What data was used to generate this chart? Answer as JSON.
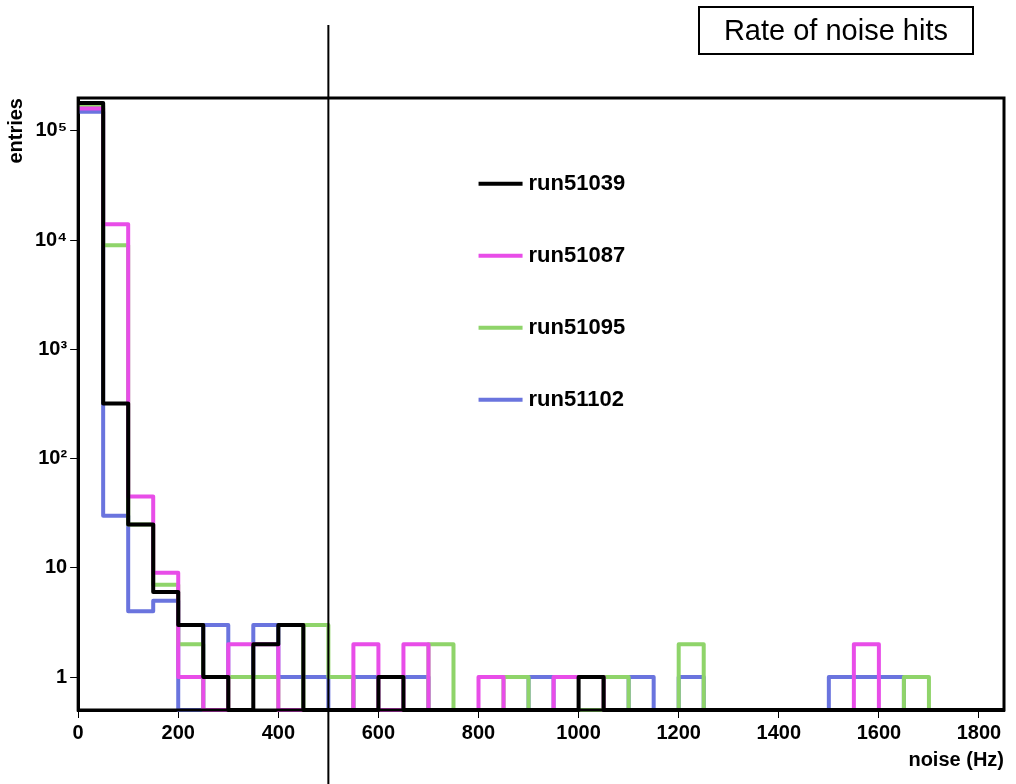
{
  "chart_data": {
    "type": "histogram",
    "title": "Rate of noise hits",
    "xlabel": "noise (Hz)",
    "ylabel": "entries",
    "bins": [
      0,
      50,
      100,
      150,
      200,
      250,
      300,
      350,
      400,
      450,
      500,
      550,
      600,
      650,
      700,
      750,
      800,
      850,
      900,
      950,
      1000,
      1050,
      1100,
      1150,
      1200,
      1250,
      1300,
      1350,
      1400,
      1450,
      1500,
      1550,
      1600,
      1650,
      1700,
      1750,
      1800,
      1850
    ],
    "series": [
      {
        "name": "run51039",
        "color": "#000000",
        "values": [
          180000,
          320,
          25,
          6,
          3,
          1,
          null,
          2,
          3,
          null,
          null,
          null,
          1,
          null,
          null,
          null,
          null,
          null,
          null,
          null,
          1,
          null,
          null,
          null,
          null,
          null,
          null,
          null,
          null,
          null,
          null,
          null,
          null,
          null,
          null,
          null,
          null
        ]
      },
      {
        "name": "run51087",
        "color": "#e84de8",
        "values": [
          160000,
          14000,
          45,
          9,
          1,
          null,
          2,
          2,
          null,
          null,
          null,
          2,
          null,
          2,
          null,
          null,
          1,
          null,
          null,
          1,
          1,
          null,
          null,
          null,
          null,
          null,
          null,
          null,
          null,
          null,
          null,
          2,
          null,
          null,
          null,
          null,
          null
        ]
      },
      {
        "name": "run51095",
        "color": "#8fd46a",
        "values": [
          170000,
          9000,
          25,
          7,
          2,
          null,
          1,
          1,
          null,
          3,
          1,
          null,
          null,
          null,
          2,
          null,
          null,
          1,
          null,
          null,
          null,
          1,
          null,
          null,
          2,
          null,
          null,
          null,
          null,
          null,
          null,
          null,
          null,
          1,
          null,
          null,
          null
        ]
      },
      {
        "name": "run51102",
        "color": "#6a74de",
        "values": [
          150000,
          30,
          4,
          5,
          null,
          3,
          1,
          3,
          1,
          1,
          null,
          1,
          1,
          1,
          null,
          null,
          null,
          null,
          1,
          null,
          null,
          null,
          1,
          null,
          1,
          null,
          null,
          null,
          null,
          null,
          1,
          1,
          1,
          null,
          null,
          null,
          null
        ]
      }
    ],
    "xlim": [
      0,
      1850
    ],
    "xticks": [
      0,
      200,
      400,
      600,
      800,
      1000,
      1200,
      1400,
      1600,
      1800
    ],
    "ylim": [
      0.5,
      200000
    ],
    "yticks": [
      {
        "value": 1,
        "label": "1"
      },
      {
        "value": 10,
        "label": "10"
      },
      {
        "value": 100,
        "label": "10²"
      },
      {
        "value": 1000,
        "label": "10³"
      },
      {
        "value": 10000,
        "label": "10⁴"
      },
      {
        "value": 100000,
        "label": "10⁵"
      }
    ],
    "log": "y",
    "grid": false,
    "legend": "top",
    "line_style": "solid",
    "marker": "none",
    "ref_lines": [
      {
        "axis": "x",
        "value": 500,
        "color": "#000000"
      }
    ]
  }
}
